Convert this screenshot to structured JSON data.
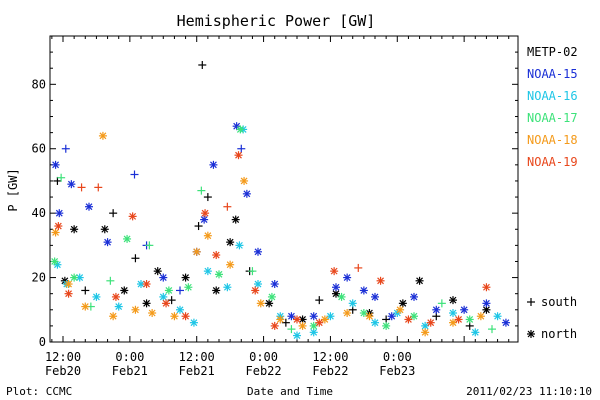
{
  "footer": {
    "left": "Plot: CCMC",
    "right": "2011/02/23 11:10:10"
  },
  "chart_data": {
    "type": "scatter",
    "title": "Hemispheric Power [GW]",
    "xlabel": "Date and Time",
    "ylabel": "P [GW]",
    "ylim": [
      0,
      95
    ],
    "xlim": [
      "2011-02-20T09:40",
      "2011-02-23T21:40"
    ],
    "y_ticks": [
      0,
      20,
      40,
      60,
      80
    ],
    "x_ticks": [
      {
        "time": "2011-02-20T12:00",
        "line1": "12:00",
        "line2": "Feb20"
      },
      {
        "time": "2011-02-21T00:00",
        "line1": "0:00",
        "line2": "Feb21"
      },
      {
        "time": "2011-02-21T12:00",
        "line1": "12:00",
        "line2": "Feb21"
      },
      {
        "time": "2011-02-22T00:00",
        "line1": "0:00",
        "line2": "Feb22"
      },
      {
        "time": "2011-02-22T12:00",
        "line1": "12:00",
        "line2": "Feb22"
      },
      {
        "time": "2011-02-23T00:00",
        "line1": "0:00",
        "line2": "Feb23"
      }
    ],
    "grid": false,
    "legend_placement": "right",
    "marker_legend": [
      {
        "marker": "+",
        "label": "south"
      },
      {
        "marker": "*",
        "label": "north"
      }
    ],
    "series": [
      {
        "name": "METP-02",
        "color": "#000000",
        "points": [
          {
            "t": "2011-02-20T11:00",
            "y": 50,
            "m": "+"
          },
          {
            "t": "2011-02-20T12:20",
            "y": 19,
            "m": "*"
          },
          {
            "t": "2011-02-20T14:00",
            "y": 35,
            "m": "*"
          },
          {
            "t": "2011-02-20T16:00",
            "y": 16,
            "m": "+"
          },
          {
            "t": "2011-02-20T19:30",
            "y": 35,
            "m": "*"
          },
          {
            "t": "2011-02-20T21:00",
            "y": 40,
            "m": "+"
          },
          {
            "t": "2011-02-20T23:00",
            "y": 16,
            "m": "*"
          },
          {
            "t": "2011-02-21T01:00",
            "y": 26,
            "m": "+"
          },
          {
            "t": "2011-02-21T03:00",
            "y": 12,
            "m": "*"
          },
          {
            "t": "2011-02-21T05:00",
            "y": 22,
            "m": "*"
          },
          {
            "t": "2011-02-21T07:30",
            "y": 13,
            "m": "+"
          },
          {
            "t": "2011-02-21T10:00",
            "y": 20,
            "m": "*"
          },
          {
            "t": "2011-02-21T12:20",
            "y": 36,
            "m": "+"
          },
          {
            "t": "2011-02-21T13:00",
            "y": 86,
            "m": "+"
          },
          {
            "t": "2011-02-21T14:00",
            "y": 45,
            "m": "+"
          },
          {
            "t": "2011-02-21T15:30",
            "y": 16,
            "m": "*"
          },
          {
            "t": "2011-02-21T18:00",
            "y": 31,
            "m": "*"
          },
          {
            "t": "2011-02-21T19:00",
            "y": 38,
            "m": "*"
          },
          {
            "t": "2011-02-21T21:30",
            "y": 22,
            "m": "+"
          },
          {
            "t": "2011-02-22T01:00",
            "y": 12,
            "m": "*"
          },
          {
            "t": "2011-02-22T04:00",
            "y": 6,
            "m": "+"
          },
          {
            "t": "2011-02-22T07:00",
            "y": 7,
            "m": "*"
          },
          {
            "t": "2011-02-22T10:00",
            "y": 13,
            "m": "+"
          },
          {
            "t": "2011-02-22T13:00",
            "y": 15,
            "m": "*"
          },
          {
            "t": "2011-02-22T16:00",
            "y": 10,
            "m": "+"
          },
          {
            "t": "2011-02-22T19:00",
            "y": 9,
            "m": "*"
          },
          {
            "t": "2011-02-22T22:00",
            "y": 7,
            "m": "+"
          },
          {
            "t": "2011-02-23T01:00",
            "y": 12,
            "m": "*"
          },
          {
            "t": "2011-02-23T04:00",
            "y": 19,
            "m": "*"
          },
          {
            "t": "2011-02-23T07:00",
            "y": 8,
            "m": "+"
          },
          {
            "t": "2011-02-23T10:00",
            "y": 13,
            "m": "*"
          },
          {
            "t": "2011-02-23T13:00",
            "y": 5,
            "m": "+"
          },
          {
            "t": "2011-02-23T16:00",
            "y": 10,
            "m": "*"
          }
        ]
      },
      {
        "name": "NOAA-15",
        "color": "#1a2fd6",
        "points": [
          {
            "t": "2011-02-20T10:40",
            "y": 55,
            "m": "*"
          },
          {
            "t": "2011-02-20T11:20",
            "y": 40,
            "m": "*"
          },
          {
            "t": "2011-02-20T12:30",
            "y": 60,
            "m": "+"
          },
          {
            "t": "2011-02-20T13:30",
            "y": 49,
            "m": "*"
          },
          {
            "t": "2011-02-20T16:40",
            "y": 42,
            "m": "*"
          },
          {
            "t": "2011-02-20T20:00",
            "y": 31,
            "m": "*"
          },
          {
            "t": "2011-02-21T00:50",
            "y": 52,
            "m": "+"
          },
          {
            "t": "2011-02-21T03:00",
            "y": 30,
            "m": "+"
          },
          {
            "t": "2011-02-21T06:00",
            "y": 20,
            "m": "*"
          },
          {
            "t": "2011-02-21T09:00",
            "y": 16,
            "m": "+"
          },
          {
            "t": "2011-02-21T12:00",
            "y": 28,
            "m": "*"
          },
          {
            "t": "2011-02-21T13:20",
            "y": 38,
            "m": "*"
          },
          {
            "t": "2011-02-21T15:00",
            "y": 55,
            "m": "*"
          },
          {
            "t": "2011-02-21T19:10",
            "y": 67,
            "m": "*"
          },
          {
            "t": "2011-02-21T20:00",
            "y": 60,
            "m": "+"
          },
          {
            "t": "2011-02-21T21:00",
            "y": 46,
            "m": "*"
          },
          {
            "t": "2011-02-21T23:00",
            "y": 28,
            "m": "*"
          },
          {
            "t": "2011-02-22T02:00",
            "y": 18,
            "m": "*"
          },
          {
            "t": "2011-02-22T05:00",
            "y": 8,
            "m": "*"
          },
          {
            "t": "2011-02-22T09:00",
            "y": 8,
            "m": "*"
          },
          {
            "t": "2011-02-22T13:00",
            "y": 17,
            "m": "*"
          },
          {
            "t": "2011-02-22T15:00",
            "y": 20,
            "m": "*"
          },
          {
            "t": "2011-02-22T18:00",
            "y": 16,
            "m": "*"
          },
          {
            "t": "2011-02-22T20:00",
            "y": 14,
            "m": "*"
          },
          {
            "t": "2011-02-22T23:00",
            "y": 8,
            "m": "*"
          },
          {
            "t": "2011-02-23T03:00",
            "y": 14,
            "m": "*"
          },
          {
            "t": "2011-02-23T07:00",
            "y": 10,
            "m": "*"
          },
          {
            "t": "2011-02-23T12:00",
            "y": 10,
            "m": "*"
          },
          {
            "t": "2011-02-23T16:00",
            "y": 12,
            "m": "*"
          },
          {
            "t": "2011-02-23T19:30",
            "y": 6,
            "m": "*"
          }
        ]
      },
      {
        "name": "NOAA-16",
        "color": "#1ec6e6",
        "points": [
          {
            "t": "2011-02-20T11:00",
            "y": 24,
            "m": "*"
          },
          {
            "t": "2011-02-20T12:40",
            "y": 18,
            "m": "*"
          },
          {
            "t": "2011-02-20T15:00",
            "y": 20,
            "m": "*"
          },
          {
            "t": "2011-02-20T18:00",
            "y": 14,
            "m": "*"
          },
          {
            "t": "2011-02-20T22:00",
            "y": 11,
            "m": "*"
          },
          {
            "t": "2011-02-21T02:00",
            "y": 18,
            "m": "*"
          },
          {
            "t": "2011-02-21T06:00",
            "y": 14,
            "m": "*"
          },
          {
            "t": "2011-02-21T09:00",
            "y": 10,
            "m": "*"
          },
          {
            "t": "2011-02-21T11:30",
            "y": 6,
            "m": "*"
          },
          {
            "t": "2011-02-21T14:00",
            "y": 22,
            "m": "*"
          },
          {
            "t": "2011-02-21T17:30",
            "y": 17,
            "m": "*"
          },
          {
            "t": "2011-02-21T19:40",
            "y": 30,
            "m": "*"
          },
          {
            "t": "2011-02-21T20:20",
            "y": 66,
            "m": "*"
          },
          {
            "t": "2011-02-21T23:00",
            "y": 18,
            "m": "*"
          },
          {
            "t": "2011-02-22T03:00",
            "y": 8,
            "m": "*"
          },
          {
            "t": "2011-02-22T06:00",
            "y": 2,
            "m": "*"
          },
          {
            "t": "2011-02-22T09:00",
            "y": 3,
            "m": "*"
          },
          {
            "t": "2011-02-22T12:00",
            "y": 8,
            "m": "*"
          },
          {
            "t": "2011-02-22T16:00",
            "y": 12,
            "m": "*"
          },
          {
            "t": "2011-02-22T20:00",
            "y": 6,
            "m": "*"
          },
          {
            "t": "2011-02-23T00:00",
            "y": 9,
            "m": "*"
          },
          {
            "t": "2011-02-23T05:00",
            "y": 5,
            "m": "*"
          },
          {
            "t": "2011-02-23T10:00",
            "y": 9,
            "m": "*"
          },
          {
            "t": "2011-02-23T14:00",
            "y": 3,
            "m": "*"
          },
          {
            "t": "2011-02-23T18:00",
            "y": 8,
            "m": "*"
          }
        ]
      },
      {
        "name": "NOAA-17",
        "color": "#3de27a",
        "points": [
          {
            "t": "2011-02-20T10:30",
            "y": 25,
            "m": "*"
          },
          {
            "t": "2011-02-20T11:40",
            "y": 51,
            "m": "+"
          },
          {
            "t": "2011-02-20T14:00",
            "y": 20,
            "m": "*"
          },
          {
            "t": "2011-02-20T17:00",
            "y": 11,
            "m": "+"
          },
          {
            "t": "2011-02-20T20:30",
            "y": 19,
            "m": "+"
          },
          {
            "t": "2011-02-20T23:30",
            "y": 32,
            "m": "*"
          },
          {
            "t": "2011-02-21T03:30",
            "y": 30,
            "m": "+"
          },
          {
            "t": "2011-02-21T07:00",
            "y": 16,
            "m": "*"
          },
          {
            "t": "2011-02-21T10:30",
            "y": 17,
            "m": "*"
          },
          {
            "t": "2011-02-21T12:50",
            "y": 47,
            "m": "+"
          },
          {
            "t": "2011-02-21T16:00",
            "y": 21,
            "m": "*"
          },
          {
            "t": "2011-02-21T19:50",
            "y": 66,
            "m": "*"
          },
          {
            "t": "2011-02-21T22:00",
            "y": 22,
            "m": "+"
          },
          {
            "t": "2011-02-22T01:30",
            "y": 14,
            "m": "*"
          },
          {
            "t": "2011-02-22T05:00",
            "y": 4,
            "m": "+"
          },
          {
            "t": "2011-02-22T09:00",
            "y": 5,
            "m": "*"
          },
          {
            "t": "2011-02-22T14:00",
            "y": 14,
            "m": "*"
          },
          {
            "t": "2011-02-22T18:00",
            "y": 9,
            "m": "*"
          },
          {
            "t": "2011-02-22T22:00",
            "y": 5,
            "m": "*"
          },
          {
            "t": "2011-02-23T03:00",
            "y": 8,
            "m": "*"
          },
          {
            "t": "2011-02-23T08:00",
            "y": 12,
            "m": "+"
          },
          {
            "t": "2011-02-23T13:00",
            "y": 7,
            "m": "*"
          },
          {
            "t": "2011-02-23T17:00",
            "y": 4,
            "m": "+"
          }
        ]
      },
      {
        "name": "NOAA-18",
        "color": "#f49a1a",
        "points": [
          {
            "t": "2011-02-20T10:40",
            "y": 34,
            "m": "*"
          },
          {
            "t": "2011-02-20T13:00",
            "y": 18,
            "m": "*"
          },
          {
            "t": "2011-02-20T16:00",
            "y": 11,
            "m": "*"
          },
          {
            "t": "2011-02-20T19:10",
            "y": 64,
            "m": "*"
          },
          {
            "t": "2011-02-20T21:00",
            "y": 8,
            "m": "*"
          },
          {
            "t": "2011-02-21T01:00",
            "y": 10,
            "m": "*"
          },
          {
            "t": "2011-02-21T04:00",
            "y": 9,
            "m": "*"
          },
          {
            "t": "2011-02-21T08:00",
            "y": 8,
            "m": "*"
          },
          {
            "t": "2011-02-21T12:00",
            "y": 28,
            "m": "*"
          },
          {
            "t": "2011-02-21T14:00",
            "y": 33,
            "m": "*"
          },
          {
            "t": "2011-02-21T18:00",
            "y": 24,
            "m": "*"
          },
          {
            "t": "2011-02-21T20:30",
            "y": 50,
            "m": "*"
          },
          {
            "t": "2011-02-21T23:30",
            "y": 12,
            "m": "*"
          },
          {
            "t": "2011-02-22T03:00",
            "y": 7,
            "m": "*"
          },
          {
            "t": "2011-02-22T07:00",
            "y": 5,
            "m": "*"
          },
          {
            "t": "2011-02-22T11:00",
            "y": 7,
            "m": "*"
          },
          {
            "t": "2011-02-22T15:00",
            "y": 9,
            "m": "*"
          },
          {
            "t": "2011-02-22T19:00",
            "y": 8,
            "m": "*"
          },
          {
            "t": "2011-02-23T00:30",
            "y": 10,
            "m": "*"
          },
          {
            "t": "2011-02-23T05:00",
            "y": 3,
            "m": "*"
          },
          {
            "t": "2011-02-23T10:00",
            "y": 6,
            "m": "*"
          },
          {
            "t": "2011-02-23T15:00",
            "y": 8,
            "m": "*"
          }
        ]
      },
      {
        "name": "NOAA-19",
        "color": "#e8471c",
        "points": [
          {
            "t": "2011-02-20T11:10",
            "y": 36,
            "m": "*"
          },
          {
            "t": "2011-02-20T13:00",
            "y": 15,
            "m": "*"
          },
          {
            "t": "2011-02-20T15:20",
            "y": 48,
            "m": "+"
          },
          {
            "t": "2011-02-20T18:20",
            "y": 48,
            "m": "+"
          },
          {
            "t": "2011-02-20T21:30",
            "y": 14,
            "m": "*"
          },
          {
            "t": "2011-02-21T00:30",
            "y": 39,
            "m": "*"
          },
          {
            "t": "2011-02-21T03:00",
            "y": 18,
            "m": "*"
          },
          {
            "t": "2011-02-21T06:30",
            "y": 12,
            "m": "*"
          },
          {
            "t": "2011-02-21T10:00",
            "y": 8,
            "m": "*"
          },
          {
            "t": "2011-02-21T13:30",
            "y": 40,
            "m": "*"
          },
          {
            "t": "2011-02-21T15:30",
            "y": 27,
            "m": "*"
          },
          {
            "t": "2011-02-21T17:30",
            "y": 42,
            "m": "+"
          },
          {
            "t": "2011-02-21T19:30",
            "y": 58,
            "m": "*"
          },
          {
            "t": "2011-02-21T22:30",
            "y": 16,
            "m": "*"
          },
          {
            "t": "2011-02-22T02:00",
            "y": 5,
            "m": "*"
          },
          {
            "t": "2011-02-22T06:00",
            "y": 7,
            "m": "*"
          },
          {
            "t": "2011-02-22T10:00",
            "y": 6,
            "m": "*"
          },
          {
            "t": "2011-02-22T12:40",
            "y": 22,
            "m": "*"
          },
          {
            "t": "2011-02-22T17:00",
            "y": 23,
            "m": "+"
          },
          {
            "t": "2011-02-22T21:00",
            "y": 19,
            "m": "*"
          },
          {
            "t": "2011-02-23T02:00",
            "y": 7,
            "m": "*"
          },
          {
            "t": "2011-02-23T06:00",
            "y": 6,
            "m": "*"
          },
          {
            "t": "2011-02-23T11:00",
            "y": 7,
            "m": "*"
          },
          {
            "t": "2011-02-23T16:00",
            "y": 17,
            "m": "*"
          }
        ]
      }
    ]
  }
}
